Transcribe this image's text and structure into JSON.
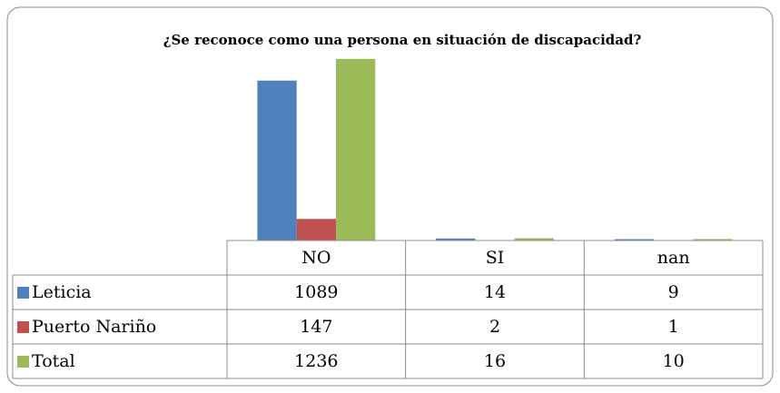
{
  "chart_data": {
    "type": "bar",
    "title": "¿Se reconoce como una persona en situación de discapacidad?",
    "categories": [
      "NO",
      "SI",
      "nan"
    ],
    "series": [
      {
        "name": "Leticia",
        "color": "#4f81bd",
        "values": [
          1089,
          14,
          9
        ]
      },
      {
        "name": "Puerto Nariño",
        "color": "#c0504d",
        "values": [
          147,
          2,
          1
        ]
      },
      {
        "name": "Total",
        "color": "#9bbb59",
        "values": [
          1236,
          16,
          10
        ]
      }
    ],
    "data_table": true
  }
}
